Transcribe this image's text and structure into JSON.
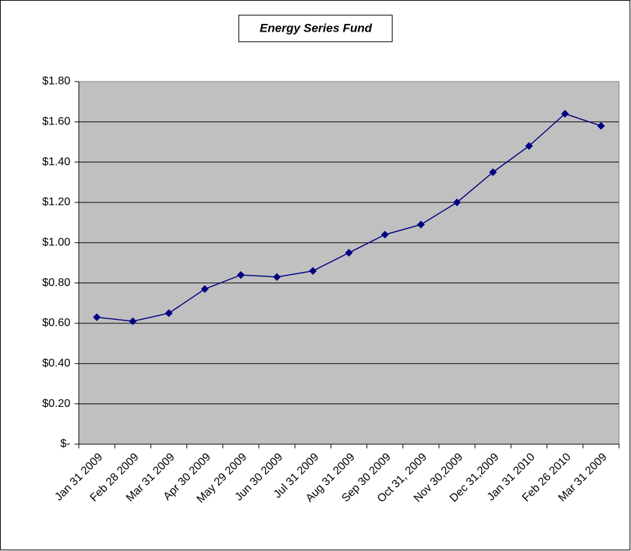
{
  "chart_data": {
    "type": "line",
    "title": "Energy Series Fund",
    "categories": [
      "Jan 31 2009",
      "Feb 28 2009",
      "Mar 31 2009",
      "Apr 30 2009",
      "May 29 2009",
      "Jun 30 2009",
      "Jul 31 2009",
      "Aug 31 2009",
      "Sep 30 2009",
      "Oct 31, 2009",
      "Nov 30,2009",
      "Dec 31,2009",
      "Jan 31 2010",
      "Feb 26 2010",
      "Mar 31 2009"
    ],
    "series": [
      {
        "name": "Energy Series Fund",
        "color": "#000080",
        "values": [
          0.63,
          0.61,
          0.65,
          0.77,
          0.84,
          0.83,
          0.86,
          0.95,
          1.04,
          1.09,
          1.2,
          1.35,
          1.48,
          1.64,
          1.58
        ]
      }
    ],
    "ylim": [
      0,
      1.8
    ],
    "yticks": [
      {
        "value": 0,
        "label": "$-"
      },
      {
        "value": 0.2,
        "label": "$0.20"
      },
      {
        "value": 0.4,
        "label": "$0.40"
      },
      {
        "value": 0.6,
        "label": "$0.60"
      },
      {
        "value": 0.8,
        "label": "$0.80"
      },
      {
        "value": 1.0,
        "label": "$1.00"
      },
      {
        "value": 1.2,
        "label": "$1.20"
      },
      {
        "value": 1.4,
        "label": "$1.40"
      },
      {
        "value": 1.6,
        "label": "$1.60"
      },
      {
        "value": 1.8,
        "label": "$1.80"
      }
    ],
    "grid": true,
    "plot_background": "#c0c0c0"
  }
}
